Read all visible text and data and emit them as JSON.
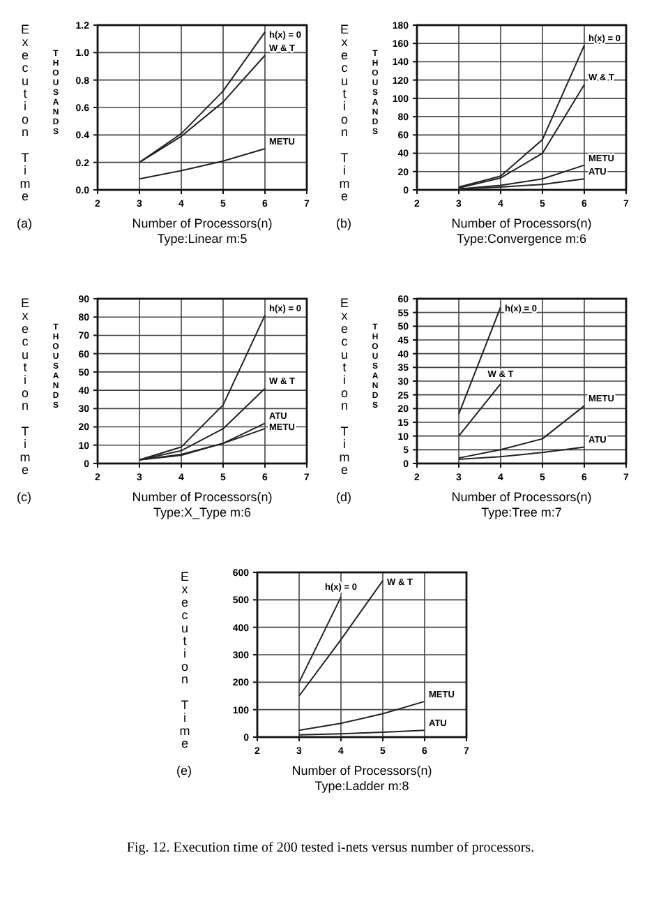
{
  "chart_data": [
    {
      "type": "line",
      "xlabel": "Number of Processors(n)",
      "subtitle": "Type:Linear m:5",
      "ylabel": "Execution Time",
      "annotations": [
        "(a)",
        "THOUSANDS"
      ],
      "xlim": [
        2,
        7
      ],
      "xticks": [
        2,
        3,
        4,
        5,
        6,
        7
      ],
      "ylim": [
        0,
        1.2
      ],
      "yticks": [
        {
          "value": 0,
          "label": "0.0"
        },
        {
          "value": 0.2,
          "label": "0.2"
        },
        {
          "value": 0.4,
          "label": "0.4"
        },
        {
          "value": 0.6,
          "label": "0.6"
        },
        {
          "value": 0.8,
          "label": "0.8"
        },
        {
          "value": 1,
          "label": "1.0"
        },
        {
          "value": 1.2,
          "label": "1.2"
        }
      ],
      "grid": true,
      "legend": false,
      "marker": "none",
      "x": [
        3,
        4,
        5,
        6
      ],
      "series": [
        {
          "name": "h(x) = 0",
          "color": "#222222",
          "values": [
            0.2,
            0.41,
            0.72,
            1.15
          ]
        },
        {
          "name": "W & T",
          "color": "#222222",
          "values": [
            0.2,
            0.39,
            0.64,
            0.98
          ]
        },
        {
          "name": "METU",
          "color": "#222222",
          "values": [
            0.08,
            0.14,
            0.21,
            0.3
          ]
        }
      ]
    },
    {
      "type": "line",
      "xlabel": "Number of Processors(n)",
      "subtitle": "Type:Convergence m:6",
      "ylabel": "Execution Time",
      "annotations": [
        "(b)",
        "THOUSANDS"
      ],
      "xlim": [
        2,
        7
      ],
      "xticks": [
        2,
        3,
        4,
        5,
        6,
        7
      ],
      "ylim": [
        0,
        180
      ],
      "yticks": [
        0,
        20,
        40,
        60,
        80,
        100,
        120,
        140,
        160,
        180
      ],
      "grid": true,
      "legend": false,
      "marker": "none",
      "x": [
        3,
        4,
        5,
        6
      ],
      "series": [
        {
          "name": "h(x) = 0",
          "color": "#222222",
          "values": [
            3,
            15,
            55,
            158
          ]
        },
        {
          "name": "W & T",
          "color": "#222222",
          "values": [
            2,
            13,
            40,
            115
          ]
        },
        {
          "name": "METU",
          "color": "#222222",
          "values": [
            1,
            5,
            12,
            27
          ]
        },
        {
          "name": "ATU",
          "color": "#222222",
          "values": [
            1,
            3,
            6,
            12
          ]
        }
      ]
    },
    {
      "type": "line",
      "xlabel": "Number of Processors(n)",
      "subtitle": "Type:X_Type m:6",
      "ylabel": "Execution Time",
      "annotations": [
        "(c)",
        "THOUSANDS"
      ],
      "xlim": [
        2,
        7
      ],
      "xticks": [
        2,
        3,
        4,
        5,
        6,
        7
      ],
      "ylim": [
        0,
        90
      ],
      "yticks": [
        0,
        10,
        20,
        30,
        40,
        50,
        60,
        70,
        80,
        90
      ],
      "grid": true,
      "legend": false,
      "marker": "none",
      "x": [
        3,
        4,
        5,
        6
      ],
      "series": [
        {
          "name": "h(x) = 0",
          "color": "#222222",
          "values": [
            2,
            9,
            32,
            81
          ]
        },
        {
          "name": "W & T",
          "color": "#222222",
          "values": [
            2,
            7,
            19,
            41
          ]
        },
        {
          "name": "ATU",
          "color": "#222222",
          "values": [
            2,
            5,
            11,
            22
          ]
        },
        {
          "name": "METU",
          "color": "#222222",
          "values": [
            2,
            4.5,
            11,
            19
          ]
        }
      ]
    },
    {
      "type": "line",
      "xlabel": "Number of Processors(n)",
      "subtitle": "Type:Tree m:7",
      "ylabel": "Execution Time",
      "annotations": [
        "(d)",
        "THOUSANDS"
      ],
      "xlim": [
        2,
        7
      ],
      "xticks": [
        2,
        3,
        4,
        5,
        6,
        7
      ],
      "ylim": [
        0,
        60
      ],
      "yticks": [
        0,
        5,
        10,
        15,
        20,
        25,
        30,
        35,
        40,
        45,
        50,
        55,
        60
      ],
      "grid": true,
      "legend": false,
      "marker": "none",
      "x": [
        3,
        4,
        5,
        6
      ],
      "series": [
        {
          "name": "h(x) = 0",
          "color": "#222222",
          "x": [
            3,
            4
          ],
          "values": [
            18,
            57
          ]
        },
        {
          "name": "W & T",
          "color": "#222222",
          "x": [
            3,
            4
          ],
          "values": [
            10,
            29
          ]
        },
        {
          "name": "METU",
          "color": "#222222",
          "values": [
            2,
            5,
            9,
            21
          ]
        },
        {
          "name": "ATU",
          "color": "#222222",
          "values": [
            1.5,
            2.5,
            4,
            6
          ]
        }
      ]
    },
    {
      "type": "line",
      "xlabel": "Number of Processors(n)",
      "subtitle": "Type:Ladder m:8",
      "ylabel": "Execution Time",
      "annotations": [
        "(e)"
      ],
      "xlim": [
        2,
        7
      ],
      "xticks": [
        2,
        3,
        4,
        5,
        6,
        7
      ],
      "ylim": [
        0,
        600
      ],
      "yticks": [
        0,
        100,
        200,
        300,
        400,
        500,
        600
      ],
      "grid": true,
      "legend": false,
      "marker": "none",
      "x": [
        3,
        4,
        5,
        6
      ],
      "series": [
        {
          "name": "h(x) = 0",
          "color": "#222222",
          "x": [
            3,
            4
          ],
          "values": [
            200,
            510
          ]
        },
        {
          "name": "W & T",
          "color": "#222222",
          "x": [
            3,
            4,
            5
          ],
          "values": [
            150,
            355,
            570
          ]
        },
        {
          "name": "METU",
          "color": "#222222",
          "values": [
            25,
            50,
            85,
            130
          ]
        },
        {
          "name": "ATU",
          "color": "#222222",
          "values": [
            8,
            12,
            18,
            25
          ]
        }
      ]
    },
    {
      "type": "other",
      "title": "Fig. 12.   Execution time of 200 tested i-nets versus number of processors."
    }
  ]
}
